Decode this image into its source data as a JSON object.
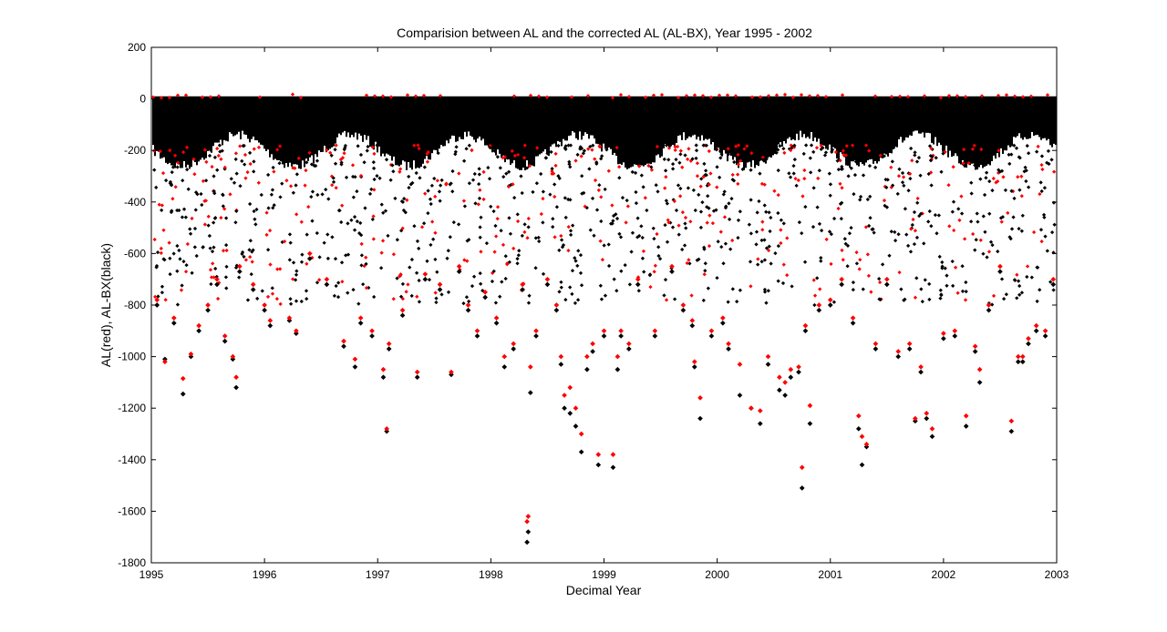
{
  "colors": {
    "background": "#ffffff",
    "axes": "#000000",
    "series_al": "#ff0000",
    "series_al_bx": "#000000"
  },
  "chart_data": {
    "type": "scatter",
    "title": "Comparision between AL and the corrected AL (AL-BX), Year 1995 - 2002",
    "xlabel": "Decimal Year",
    "ylabel": "AL(red), AL-BX(black)",
    "xlim": [
      1995,
      2003
    ],
    "ylim": [
      -1800,
      200
    ],
    "xticks": [
      1995,
      1996,
      1997,
      1998,
      1999,
      2000,
      2001,
      2002,
      2003
    ],
    "yticks": [
      200,
      0,
      -200,
      -400,
      -600,
      -800,
      -1000,
      -1200,
      -1400,
      -1600,
      -1800
    ],
    "xtick_labels": [
      "1995",
      "1996",
      "1997",
      "1998",
      "1999",
      "2000",
      "2001",
      "2002",
      "2003"
    ],
    "ytick_labels": [
      "200",
      "0",
      "-200",
      "-400",
      "-600",
      "-800",
      "-1000",
      "-1200",
      "-1400",
      "-1600",
      "-1800"
    ],
    "grid": false,
    "legend": "none",
    "marker": "diamond",
    "series": [
      {
        "color": "#ff0000",
        "x": [
          1995.05,
          1995.12,
          1995.2,
          1995.28,
          1995.35,
          1995.42,
          1995.5,
          1995.58,
          1995.65,
          1995.72,
          1995.75,
          1995.78,
          1995.9,
          1996.0,
          1996.05,
          1996.22,
          1996.28,
          1996.4,
          1996.55,
          1996.7,
          1996.8,
          1996.85,
          1996.95,
          1997.05,
          1997.08,
          1997.1,
          1997.22,
          1997.35,
          1997.42,
          1997.55,
          1997.65,
          1997.72,
          1997.8,
          1997.88,
          1997.95,
          1998.05,
          1998.12,
          1998.2,
          1998.28,
          1998.32,
          1998.33,
          1998.35,
          1998.4,
          1998.5,
          1998.58,
          1998.62,
          1998.65,
          1998.7,
          1998.75,
          1998.8,
          1998.85,
          1998.9,
          1998.95,
          1999.0,
          1999.08,
          1999.12,
          1999.15,
          1999.22,
          1999.3,
          1999.45,
          1999.6,
          1999.7,
          1999.78,
          1999.8,
          1999.85,
          1999.95,
          2000.05,
          2000.1,
          2000.2,
          2000.3,
          2000.38,
          2000.45,
          2000.55,
          2000.6,
          2000.65,
          2000.72,
          2000.75,
          2000.78,
          2000.82,
          2000.9,
          2001.0,
          2001.1,
          2001.2,
          2001.25,
          2001.28,
          2001.32,
          2001.4,
          2001.5,
          2001.6,
          2001.7,
          2001.75,
          2001.8,
          2001.85,
          2001.9,
          2002.0,
          2002.1,
          2002.2,
          2002.28,
          2002.32,
          2002.4,
          2002.5,
          2002.6,
          2002.66,
          2002.7,
          2002.75,
          2002.82,
          2002.9,
          2002.97
        ],
        "y": [
          -780,
          -1020,
          -850,
          -1085,
          -990,
          -880,
          -800,
          -700,
          -920,
          -1000,
          -1080,
          -650,
          -720,
          -800,
          -860,
          -850,
          -900,
          -600,
          -700,
          -940,
          -1010,
          -850,
          -900,
          -1050,
          -1280,
          -950,
          -820,
          -1060,
          -680,
          -720,
          -1060,
          -650,
          -800,
          -900,
          -750,
          -850,
          -1000,
          -950,
          -720,
          -1640,
          -1620,
          -1040,
          -900,
          -700,
          -800,
          -1000,
          -1150,
          -1120,
          -1200,
          -1300,
          -1000,
          -950,
          -1380,
          -900,
          -1380,
          -1000,
          -900,
          -950,
          -700,
          -900,
          -650,
          -800,
          -860,
          -1020,
          -1160,
          -900,
          -850,
          -950,
          -1030,
          -1200,
          -1210,
          -1000,
          -1080,
          -1100,
          -1050,
          -1040,
          -1430,
          -880,
          -1190,
          -800,
          -780,
          -700,
          -850,
          -1230,
          -1310,
          -1340,
          -950,
          -700,
          -980,
          -950,
          -1240,
          -1040,
          -1220,
          -1280,
          -910,
          -900,
          -1230,
          -960,
          -1050,
          -800,
          -650,
          -1250,
          -1000,
          -1000,
          -930,
          -880,
          -900,
          -700
        ]
      },
      {
        "color": "#000000",
        "x": [
          1995.05,
          1995.12,
          1995.2,
          1995.28,
          1995.35,
          1995.42,
          1995.5,
          1995.58,
          1995.65,
          1995.72,
          1995.75,
          1995.78,
          1995.9,
          1996.0,
          1996.05,
          1996.22,
          1996.28,
          1996.4,
          1996.55,
          1996.7,
          1996.8,
          1996.85,
          1996.95,
          1997.05,
          1997.08,
          1997.1,
          1997.22,
          1997.35,
          1997.42,
          1997.55,
          1997.65,
          1997.72,
          1997.8,
          1997.88,
          1997.95,
          1998.05,
          1998.12,
          1998.2,
          1998.28,
          1998.32,
          1998.33,
          1998.35,
          1998.4,
          1998.5,
          1998.58,
          1998.62,
          1998.65,
          1998.7,
          1998.75,
          1998.8,
          1998.85,
          1998.9,
          1998.95,
          1999.0,
          1999.08,
          1999.12,
          1999.15,
          1999.22,
          1999.3,
          1999.45,
          1999.6,
          1999.7,
          1999.78,
          1999.8,
          1999.85,
          1999.95,
          2000.05,
          2000.1,
          2000.2,
          2000.3,
          2000.38,
          2000.45,
          2000.55,
          2000.6,
          2000.65,
          2000.72,
          2000.75,
          2000.78,
          2000.82,
          2000.9,
          2001.0,
          2001.1,
          2001.2,
          2001.25,
          2001.28,
          2001.32,
          2001.4,
          2001.5,
          2001.6,
          2001.7,
          2001.75,
          2001.8,
          2001.85,
          2001.9,
          2002.0,
          2002.1,
          2002.2,
          2002.28,
          2002.32,
          2002.4,
          2002.5,
          2002.6,
          2002.66,
          2002.7,
          2002.75,
          2002.82,
          2002.9,
          2002.97
        ],
        "y": [
          -800,
          -1010,
          -870,
          -1145,
          -1000,
          -900,
          -820,
          -720,
          -940,
          -1010,
          -1120,
          -670,
          -740,
          -820,
          -880,
          -860,
          -910,
          -620,
          -720,
          -960,
          -1040,
          -870,
          -920,
          -1080,
          -1290,
          -970,
          -840,
          -1080,
          -700,
          -740,
          -1070,
          -670,
          -820,
          -920,
          -770,
          -870,
          -1040,
          -970,
          -740,
          -1720,
          -1680,
          -1140,
          -920,
          -720,
          -820,
          -1030,
          -1200,
          -1220,
          -1270,
          -1370,
          -1050,
          -980,
          -1420,
          -920,
          -1430,
          -1050,
          -920,
          -970,
          -720,
          -920,
          -670,
          -820,
          -880,
          -1040,
          -1240,
          -920,
          -870,
          -970,
          -1150,
          -1200,
          -1260,
          -1030,
          -1130,
          -1150,
          -1080,
          -1060,
          -1510,
          -900,
          -1260,
          -820,
          -800,
          -720,
          -870,
          -1280,
          -1420,
          -1350,
          -970,
          -720,
          -1000,
          -970,
          -1250,
          -1060,
          -1240,
          -1310,
          -930,
          -920,
          -1270,
          -980,
          -1100,
          -820,
          -670,
          -1290,
          -1020,
          -1020,
          -950,
          -900,
          -920,
          -720
        ]
      }
    ]
  }
}
